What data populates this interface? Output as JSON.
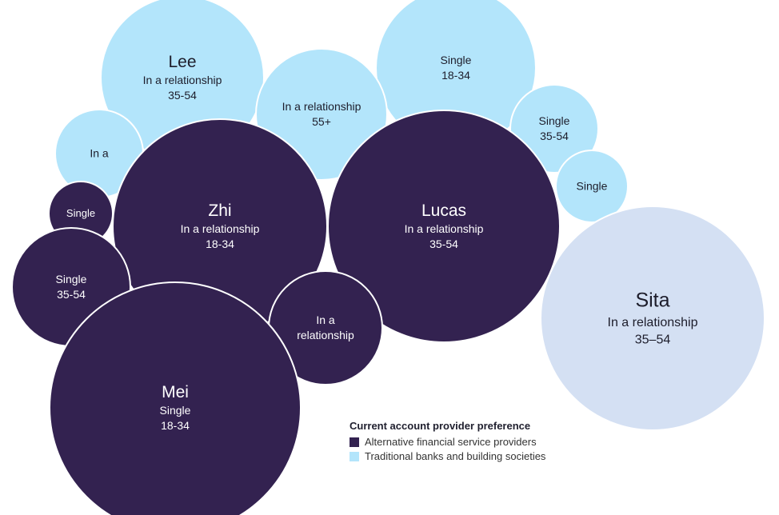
{
  "colors": {
    "alternative": "#332250",
    "traditional": "#b3e5fb",
    "sita": "#d4e0f3",
    "label_dark": "#1d1d2b",
    "label_light": "#ffffff"
  },
  "bubbles": [
    {
      "id": "lee",
      "group": "traditional",
      "name": "Lee",
      "lines": [
        "In a relationship",
        "35-54"
      ]
    },
    {
      "id": "single-18-34-top",
      "group": "traditional",
      "name": "",
      "lines": [
        "Single",
        "18-34"
      ]
    },
    {
      "id": "relationship-55",
      "group": "traditional",
      "name": "",
      "lines": [
        "In a relationship",
        "55+"
      ]
    },
    {
      "id": "in-a-left",
      "group": "traditional",
      "name": "",
      "lines": [
        "In a"
      ]
    },
    {
      "id": "single-35-54-right",
      "group": "traditional",
      "name": "",
      "lines": [
        "Single",
        "35-54"
      ]
    },
    {
      "id": "single-right",
      "group": "traditional",
      "name": "",
      "lines": [
        "Single"
      ]
    },
    {
      "id": "zhi",
      "group": "alternative",
      "name": "Zhi",
      "lines": [
        "In a relationship",
        "18-34"
      ]
    },
    {
      "id": "lucas",
      "group": "alternative",
      "name": "Lucas",
      "lines": [
        "In a relationship",
        "35-54"
      ]
    },
    {
      "id": "single-left-small",
      "group": "alternative",
      "name": "",
      "lines": [
        "Single"
      ]
    },
    {
      "id": "single-35-54-left",
      "group": "alternative",
      "name": "",
      "lines": [
        "Single",
        "35-54"
      ]
    },
    {
      "id": "in-a-relationship-mid",
      "group": "alternative",
      "name": "",
      "lines": [
        "In a",
        "relationship"
      ]
    },
    {
      "id": "mei",
      "group": "alternative",
      "name": "Mei",
      "lines": [
        "Single",
        "18-34"
      ]
    },
    {
      "id": "sita",
      "group": "sita",
      "name": "Sita",
      "lines": [
        "In a relationship",
        "35–54"
      ]
    }
  ],
  "legend": {
    "title": "Current account provider preference",
    "items": [
      {
        "label": "Alternative financial service providers",
        "group": "alternative"
      },
      {
        "label": "Traditional banks and building societies",
        "group": "traditional"
      }
    ]
  }
}
